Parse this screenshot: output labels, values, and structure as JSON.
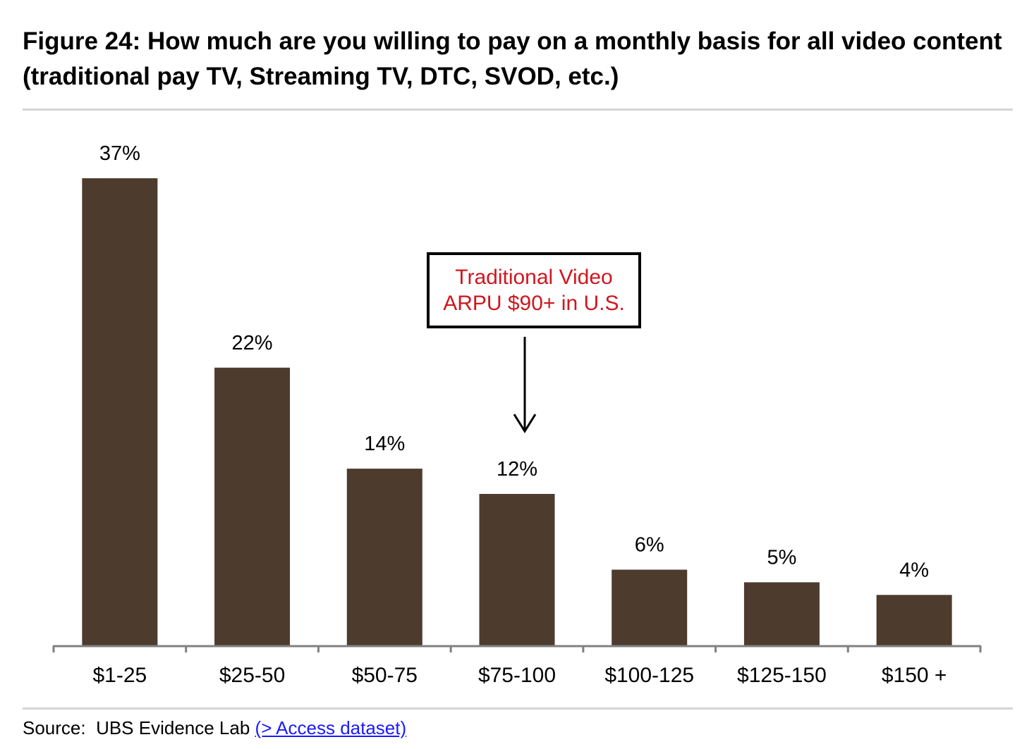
{
  "title": "Figure 24: How much are you willing to pay on a monthly basis for all video content (traditional pay TV, Streaming TV, DTC, SVOD, etc.)",
  "callout": {
    "line1": "Traditional Video",
    "line2": "ARPU $90+ in U.S.",
    "text_color": "#d0161f"
  },
  "source": {
    "label": "Source:",
    "text": "UBS Evidence Lab",
    "link": "(> Access dataset)"
  },
  "colors": {
    "bar": "#4d3b2e",
    "axis": "#808080"
  },
  "chart_data": {
    "type": "bar",
    "categories": [
      "$1-25",
      "$25-50",
      "$50-75",
      "$75-100",
      "$100-125",
      "$125-150",
      "$150 +"
    ],
    "values": [
      37,
      22,
      14,
      12,
      6,
      5,
      4
    ],
    "data_labels": [
      "37%",
      "22%",
      "14%",
      "12%",
      "6%",
      "5%",
      "4%"
    ],
    "title": "Figure 24: How much are you willing to pay on a monthly basis for all video content (traditional pay TV, Streaming TV, DTC, SVOD, etc.)",
    "xlabel": "",
    "ylabel": "",
    "ylim": [
      0,
      40
    ],
    "grid": false,
    "legend": "none",
    "annotation": {
      "text": "Traditional Video ARPU $90+ in U.S.",
      "points_to_category": "$75-100"
    }
  }
}
